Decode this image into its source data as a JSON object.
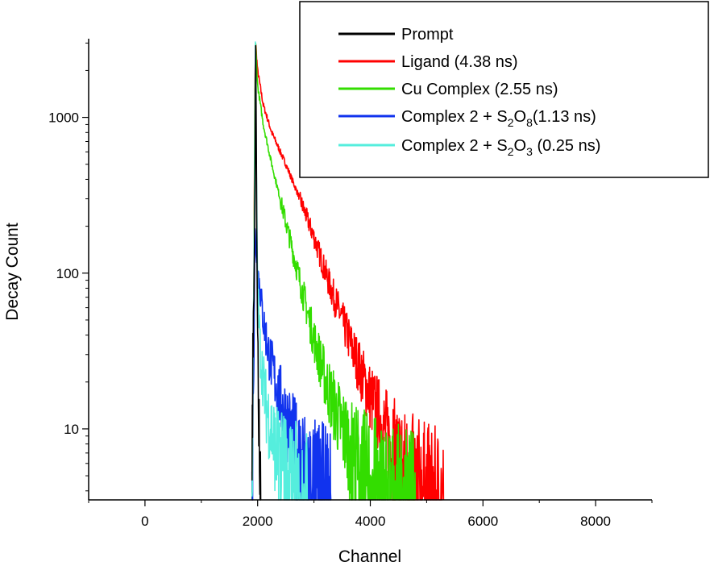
{
  "chart_data": {
    "type": "line",
    "xlabel": "Channel",
    "ylabel": "Decay Count",
    "xlim": [
      -1000,
      9000
    ],
    "ylim": [
      3.5,
      3200
    ],
    "yscale": "log",
    "grid": false,
    "legend_position": "top-right",
    "x_ticks": [
      {
        "value": 0,
        "label": "0"
      },
      {
        "value": 2000,
        "label": "2000"
      },
      {
        "value": 4000,
        "label": "4000"
      },
      {
        "value": 6000,
        "label": "6000"
      },
      {
        "value": 8000,
        "label": "8000"
      }
    ],
    "y_ticks": [
      {
        "value": 10,
        "label": "10"
      },
      {
        "value": 100,
        "label": "100"
      },
      {
        "value": 1000,
        "label": "1000"
      }
    ],
    "series": [
      {
        "name": "Prompt",
        "color": "#000000",
        "points": [
          [
            1900,
            3.5
          ],
          [
            1915,
            30
          ],
          [
            1930,
            60
          ],
          [
            1945,
            150
          ],
          [
            1958,
            700
          ],
          [
            1965,
            3000
          ],
          [
            1975,
            900
          ],
          [
            1985,
            200
          ],
          [
            2000,
            40
          ],
          [
            2020,
            12
          ],
          [
            2045,
            5
          ],
          [
            2060,
            3.5
          ]
        ]
      },
      {
        "name": "Ligand (4.38 ns)",
        "color": "#ff0000",
        "points": [
          [
            1900,
            3.5
          ],
          [
            1935,
            100
          ],
          [
            1950,
            1500
          ],
          [
            1965,
            3000
          ],
          [
            2000,
            2000
          ],
          [
            2100,
            1200
          ],
          [
            2250,
            800
          ],
          [
            2500,
            500
          ],
          [
            2750,
            300
          ],
          [
            3000,
            170
          ],
          [
            3250,
            90
          ],
          [
            3500,
            50
          ],
          [
            3750,
            28
          ],
          [
            4000,
            16
          ],
          [
            4250,
            10
          ],
          [
            4500,
            6.5
          ],
          [
            4750,
            5
          ],
          [
            5000,
            4
          ],
          [
            5300,
            3.5
          ]
        ]
      },
      {
        "name": "Cu Complex (2.55 ns)",
        "color": "#33dd00",
        "points": [
          [
            1900,
            3.5
          ],
          [
            1935,
            80
          ],
          [
            1950,
            1100
          ],
          [
            1965,
            2900
          ],
          [
            2000,
            1600
          ],
          [
            2100,
            900
          ],
          [
            2250,
            500
          ],
          [
            2400,
            300
          ],
          [
            2600,
            150
          ],
          [
            2800,
            75
          ],
          [
            3000,
            38
          ],
          [
            3250,
            18
          ],
          [
            3500,
            10
          ],
          [
            3750,
            6.5
          ],
          [
            4000,
            5
          ],
          [
            4300,
            4
          ],
          [
            4800,
            3.5
          ]
        ]
      },
      {
        "name": "Complex 2 + S2O8(1.13 ns)",
        "color": "#1133ee",
        "points": [
          [
            1900,
            3.5
          ],
          [
            1935,
            40
          ],
          [
            1950,
            200
          ],
          [
            1965,
            150
          ],
          [
            2000,
            110
          ],
          [
            2100,
            50
          ],
          [
            2200,
            30
          ],
          [
            2350,
            18
          ],
          [
            2500,
            12
          ],
          [
            2650,
            8
          ],
          [
            2800,
            6
          ],
          [
            3000,
            4.5
          ],
          [
            3300,
            3.5
          ]
        ]
      },
      {
        "name": "Complex 2 + S2O3 (0.25 ns)",
        "color": "#55eedd",
        "points": [
          [
            1900,
            3.5
          ],
          [
            1920,
            30
          ],
          [
            1945,
            300
          ],
          [
            1960,
            3000
          ],
          [
            1975,
            600
          ],
          [
            2000,
            80
          ],
          [
            2050,
            30
          ],
          [
            2150,
            14
          ],
          [
            2300,
            8
          ],
          [
            2500,
            5.5
          ],
          [
            2700,
            4.2
          ],
          [
            2900,
            3.5
          ]
        ]
      }
    ]
  },
  "legend": {
    "items": [
      {
        "text": "Prompt",
        "color": "#000000"
      },
      {
        "text": "Ligand (4.38 ns)",
        "color": "#ff0000"
      },
      {
        "text": "Cu Complex (2.55 ns)",
        "color": "#33dd00"
      },
      {
        "prefix": "Complex 2 + S",
        "sub1": "2",
        "mid": "O",
        "sub2": "8",
        "suffix": "(1.13 ns)",
        "color": "#1133ee"
      },
      {
        "prefix": "Complex 2 + S",
        "sub1": "2",
        "mid": "O",
        "sub2": "3",
        "suffix": " (0.25 ns)",
        "color": "#55eedd"
      }
    ]
  }
}
